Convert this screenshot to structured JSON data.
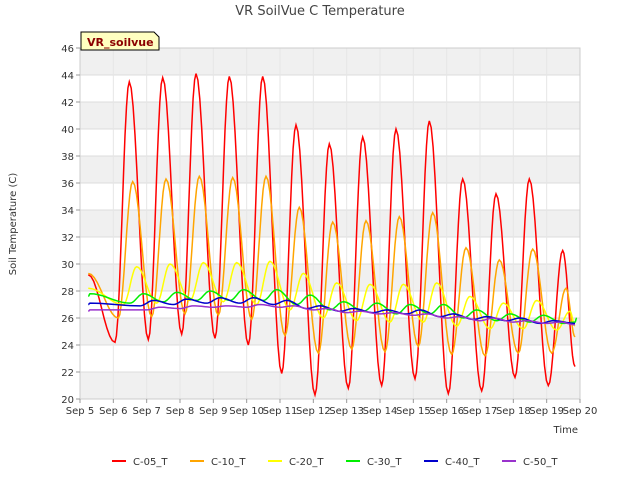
{
  "chart_data": {
    "type": "line",
    "title": "VR SoilVue C Temperature",
    "site_label": "VR_soilvue",
    "xlabel": "Time",
    "ylabel": "Soil Temperature (C)",
    "x_unit": "day of month (Sep)",
    "xlim": [
      5,
      20
    ],
    "ylim": [
      20,
      46
    ],
    "x_ticks": [
      5,
      6,
      7,
      8,
      9,
      10,
      11,
      12,
      13,
      14,
      15,
      16,
      17,
      18,
      19,
      20
    ],
    "x_tick_labels": [
      "Sep 5",
      "Sep 6",
      "Sep 7",
      "Sep 8",
      "Sep 9",
      "Sep 10",
      "Sep 11",
      "Sep 12",
      "Sep 13",
      "Sep 14",
      "Sep 15",
      "Sep 16",
      "Sep 17",
      "Sep 18",
      "Sep 19",
      "Sep 20"
    ],
    "y_ticks": [
      20,
      22,
      24,
      26,
      28,
      30,
      32,
      34,
      36,
      38,
      40,
      42,
      44,
      46
    ],
    "y_tick_labels": [
      "20",
      "22",
      "24",
      "26",
      "28",
      "30",
      "32",
      "34",
      "36",
      "38",
      "40",
      "42",
      "44",
      "46"
    ],
    "grid": true,
    "legend_position": "bottom",
    "x_start": 5.25,
    "x_end": 19.85,
    "series": [
      {
        "name": "C-05_T",
        "color": "#ff0000",
        "peak_x": [
          6.48,
          7.48,
          8.48,
          9.48,
          10.48,
          11.48,
          12.48,
          13.48,
          14.48,
          15.48,
          16.48,
          17.48,
          18.48,
          19.48
        ],
        "peak_y": [
          43.5,
          43.8,
          44.1,
          43.9,
          43.9,
          40.3,
          38.9,
          39.4,
          40.0,
          40.6,
          36.3,
          35.2,
          36.3,
          31.0
        ],
        "trough_x": [
          5.25,
          6.05,
          7.05,
          8.05,
          9.05,
          10.05,
          11.05,
          12.05,
          13.05,
          14.05,
          15.05,
          16.05,
          17.05,
          18.05,
          19.05,
          19.85
        ],
        "trough_y": [
          29.2,
          24.2,
          24.4,
          24.8,
          24.5,
          24.0,
          21.9,
          20.3,
          20.8,
          21.0,
          21.5,
          20.4,
          20.6,
          21.6,
          21.0,
          22.4
        ]
      },
      {
        "name": "C-10_T",
        "color": "#ffa500",
        "peak_x": [
          6.58,
          7.58,
          8.58,
          9.58,
          10.58,
          11.58,
          12.58,
          13.58,
          14.58,
          15.58,
          16.58,
          17.58,
          18.58,
          19.58
        ],
        "peak_y": [
          36.1,
          36.3,
          36.5,
          36.4,
          36.5,
          34.2,
          33.1,
          33.2,
          33.5,
          33.8,
          31.2,
          30.3,
          31.1,
          28.2
        ],
        "trough_x": [
          5.25,
          6.15,
          7.15,
          8.15,
          9.15,
          10.15,
          11.15,
          12.15,
          13.15,
          14.15,
          15.15,
          16.15,
          17.15,
          18.15,
          19.15,
          19.85
        ],
        "trough_y": [
          29.3,
          26.0,
          26.1,
          26.3,
          26.2,
          25.9,
          24.7,
          23.4,
          23.7,
          23.5,
          23.9,
          23.3,
          23.2,
          23.4,
          23.4,
          24.6
        ]
      },
      {
        "name": "C-20_T",
        "color": "#ffff00",
        "peak_x": [
          6.7,
          7.7,
          8.7,
          9.7,
          10.7,
          11.7,
          12.7,
          13.7,
          14.7,
          15.7,
          16.7,
          17.7,
          18.7,
          19.7
        ],
        "peak_y": [
          29.8,
          30.0,
          30.1,
          30.1,
          30.2,
          29.3,
          28.6,
          28.5,
          28.5,
          28.6,
          27.6,
          27.1,
          27.3,
          26.5
        ],
        "trough_x": [
          5.25,
          6.3,
          7.3,
          8.3,
          9.3,
          10.3,
          11.3,
          12.3,
          13.3,
          14.3,
          15.3,
          16.3,
          17.3,
          18.3,
          19.3,
          19.85
        ],
        "trough_y": [
          28.2,
          27.0,
          27.1,
          27.3,
          27.2,
          27.0,
          26.6,
          26.0,
          25.8,
          25.7,
          25.7,
          25.4,
          25.2,
          25.2,
          25.1,
          25.4
        ]
      },
      {
        "name": "C-30_T",
        "color": "#00ee00",
        "peak_x": [
          5.3,
          6.9,
          7.9,
          8.9,
          9.9,
          10.9,
          11.9,
          12.9,
          13.9,
          14.9,
          15.9,
          16.9,
          17.9,
          18.9,
          19.9
        ],
        "peak_y": [
          27.8,
          27.8,
          27.9,
          28.0,
          28.1,
          28.1,
          27.7,
          27.2,
          27.1,
          27.0,
          27.0,
          26.6,
          26.3,
          26.2,
          26.0
        ],
        "trough_x": [
          5.25,
          6.5,
          7.5,
          8.5,
          9.5,
          10.5,
          11.5,
          12.5,
          13.5,
          14.5,
          15.5,
          16.5,
          17.5,
          18.5,
          19.5,
          19.85
        ],
        "trough_y": [
          27.6,
          27.1,
          27.2,
          27.3,
          27.3,
          27.3,
          27.0,
          26.6,
          26.5,
          26.3,
          26.3,
          26.0,
          25.8,
          25.7,
          25.6,
          25.7
        ]
      },
      {
        "name": "C-40_T",
        "color": "#0000cc",
        "peak_x": [
          5.3,
          7.2,
          8.2,
          9.2,
          10.2,
          11.2,
          12.2,
          13.2,
          14.2,
          15.2,
          16.2,
          17.2,
          18.2,
          19.2
        ],
        "peak_y": [
          27.1,
          27.3,
          27.4,
          27.5,
          27.5,
          27.3,
          26.9,
          26.7,
          26.6,
          26.6,
          26.3,
          26.1,
          26.0,
          25.8
        ],
        "trough_x": [
          5.25,
          6.8,
          7.8,
          8.8,
          9.8,
          10.8,
          11.8,
          12.8,
          13.8,
          14.8,
          15.8,
          16.8,
          17.8,
          18.8,
          19.85
        ],
        "trough_y": [
          27.0,
          26.9,
          27.0,
          27.1,
          27.1,
          27.0,
          26.7,
          26.5,
          26.4,
          26.3,
          26.1,
          25.9,
          25.8,
          25.6,
          25.6
        ]
      },
      {
        "name": "C-50_T",
        "color": "#9932cc",
        "peak_x": [
          5.3,
          7.4,
          8.4,
          9.4,
          10.4,
          11.4,
          12.4,
          13.4,
          14.4,
          15.4,
          16.4,
          17.4,
          18.4,
          19.4
        ],
        "peak_y": [
          26.6,
          26.8,
          26.9,
          26.9,
          27.0,
          26.9,
          26.7,
          26.5,
          26.4,
          26.3,
          26.1,
          26.0,
          25.8,
          25.7
        ],
        "trough_x": [
          5.25,
          7.0,
          8.0,
          9.0,
          10.0,
          11.0,
          12.0,
          13.0,
          14.0,
          15.0,
          16.0,
          17.0,
          18.0,
          19.0,
          19.85
        ],
        "trough_y": [
          26.5,
          26.6,
          26.7,
          26.8,
          26.8,
          26.8,
          26.6,
          26.4,
          26.3,
          26.2,
          26.0,
          25.8,
          25.7,
          25.6,
          25.5
        ]
      }
    ]
  }
}
